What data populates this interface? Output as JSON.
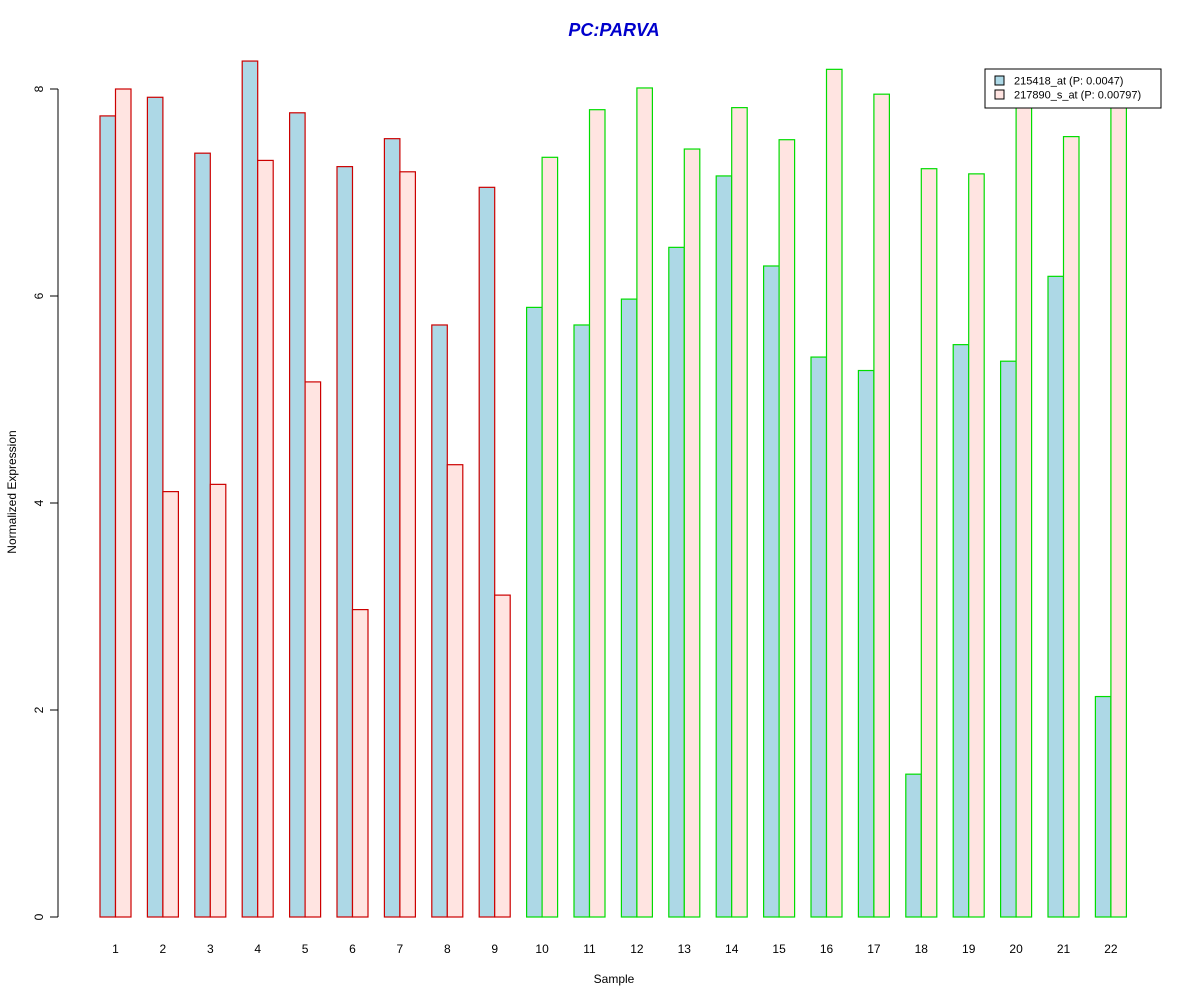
{
  "chart_data": {
    "type": "bar",
    "title": "PC:PARVA",
    "xlabel": "Sample",
    "ylabel": "Normalized Expression",
    "ylim": [
      0,
      8.3
    ],
    "yticks": [
      0,
      2,
      4,
      6,
      8
    ],
    "grid": false,
    "legend_position": "top-right",
    "categories": [
      "1",
      "2",
      "3",
      "4",
      "5",
      "6",
      "7",
      "8",
      "9",
      "10",
      "11",
      "12",
      "13",
      "14",
      "15",
      "16",
      "17",
      "18",
      "19",
      "20",
      "21",
      "22"
    ],
    "series": [
      {
        "name": "215418_at (P: 0.0047)",
        "values": [
          7.74,
          7.92,
          7.38,
          8.27,
          7.77,
          7.25,
          7.52,
          5.72,
          7.05,
          5.89,
          5.72,
          5.97,
          6.47,
          7.16,
          6.29,
          5.41,
          5.28,
          1.38,
          5.53,
          5.37,
          6.19,
          2.13
        ]
      },
      {
        "name": "217890_s_at (P: 0.00797)",
        "values": [
          8.0,
          4.11,
          4.18,
          7.31,
          5.17,
          2.97,
          7.2,
          4.37,
          3.11,
          7.34,
          7.8,
          8.01,
          7.42,
          7.82,
          7.51,
          8.19,
          7.95,
          7.23,
          7.18,
          7.85,
          7.54,
          7.85
        ]
      }
    ],
    "group_border_colors": [
      "#cc0000",
      "#cc0000",
      "#cc0000",
      "#cc0000",
      "#cc0000",
      "#cc0000",
      "#cc0000",
      "#cc0000",
      "#cc0000",
      "#00dd00",
      "#00dd00",
      "#00dd00",
      "#00dd00",
      "#00dd00",
      "#00dd00",
      "#00dd00",
      "#00dd00",
      "#00dd00",
      "#00dd00",
      "#00dd00",
      "#00dd00",
      "#00dd00"
    ],
    "colors": {
      "title": "#0000cc",
      "series_fills": [
        "#add8e6",
        "#ffe4e1"
      ],
      "legend_fills": [
        "#add8e6",
        "#ffe4e1"
      ]
    }
  }
}
